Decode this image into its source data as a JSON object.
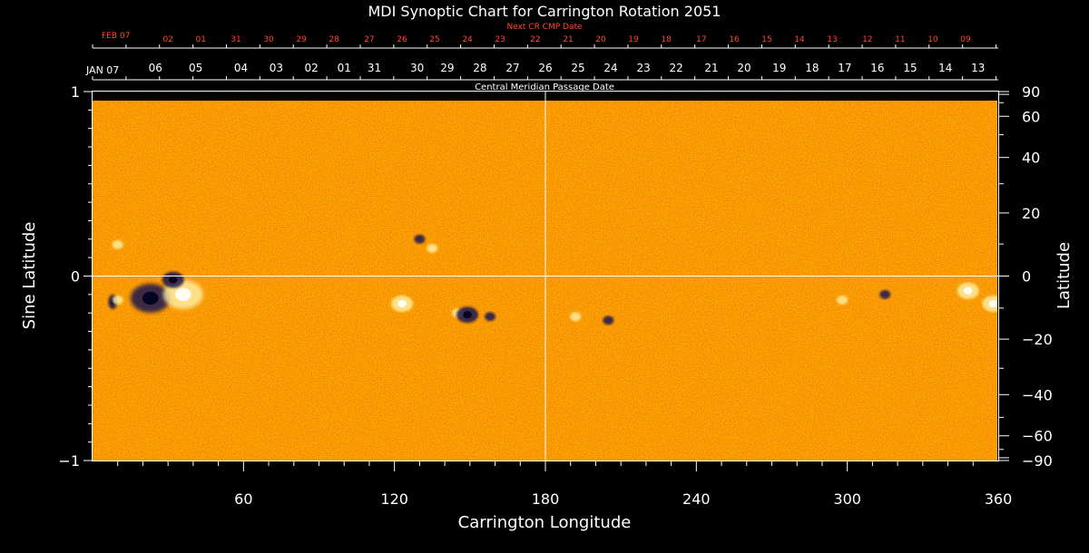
{
  "chart_data": {
    "type": "heatmap",
    "title": "MDI Synoptic Chart for Carrington Rotation 2051",
    "xlabel": "Carrington Longitude",
    "ylabel_left": "Sine Latitude",
    "ylabel_right": "Latitude",
    "xlim": [
      0,
      360
    ],
    "ylim": [
      -1,
      1
    ],
    "x_ticks": [
      60,
      120,
      180,
      240,
      300,
      360
    ],
    "y_ticks_left": [
      {
        "value": 1,
        "label": "1"
      },
      {
        "value": 0,
        "label": "0"
      },
      {
        "value": -1,
        "label": "−1"
      }
    ],
    "y_ticks_right": [
      {
        "deg": 90,
        "label": "90"
      },
      {
        "deg": 60,
        "label": "60"
      },
      {
        "deg": 40,
        "label": "40"
      },
      {
        "deg": 20,
        "label": "20"
      },
      {
        "deg": 0,
        "label": "0"
      },
      {
        "deg": -20,
        "label": "−20"
      },
      {
        "deg": -40,
        "label": "−40"
      },
      {
        "deg": -60,
        "label": "−60"
      },
      {
        "deg": -90,
        "label": "−90"
      }
    ],
    "cmp_axis_label": "Central Meridian Passage Date",
    "cmp_start_label": "JAN 07",
    "cmp_dates": [
      {
        "lon": 25,
        "label": "06"
      },
      {
        "lon": 41,
        "label": "05"
      },
      {
        "lon": 59,
        "label": "04"
      },
      {
        "lon": 73,
        "label": "03"
      },
      {
        "lon": 87,
        "label": "02"
      },
      {
        "lon": 100,
        "label": "01"
      },
      {
        "lon": 112,
        "label": "31"
      },
      {
        "lon": 129,
        "label": "30"
      },
      {
        "lon": 141,
        "label": "29"
      },
      {
        "lon": 154,
        "label": "28"
      },
      {
        "lon": 167,
        "label": "27"
      },
      {
        "lon": 180,
        "label": "26"
      },
      {
        "lon": 193,
        "label": "25"
      },
      {
        "lon": 206,
        "label": "24"
      },
      {
        "lon": 219,
        "label": "23"
      },
      {
        "lon": 232,
        "label": "22"
      },
      {
        "lon": 246,
        "label": "21"
      },
      {
        "lon": 259,
        "label": "20"
      },
      {
        "lon": 273,
        "label": "19"
      },
      {
        "lon": 286,
        "label": "18"
      },
      {
        "lon": 299,
        "label": "17"
      },
      {
        "lon": 312,
        "label": "16"
      },
      {
        "lon": 325,
        "label": "15"
      },
      {
        "lon": 339,
        "label": "14"
      },
      {
        "lon": 352,
        "label": "13"
      }
    ],
    "next_cr_label": "Next CR CMP Date",
    "next_cr_start_label": "FEB 07",
    "next_cr_dates": [
      {
        "lon": 30,
        "label": "02"
      },
      {
        "lon": 43,
        "label": "01"
      },
      {
        "lon": 57,
        "label": "31"
      },
      {
        "lon": 70,
        "label": "30"
      },
      {
        "lon": 83,
        "label": "29"
      },
      {
        "lon": 96,
        "label": "28"
      },
      {
        "lon": 110,
        "label": "27"
      },
      {
        "lon": 123,
        "label": "26"
      },
      {
        "lon": 136,
        "label": "25"
      },
      {
        "lon": 149,
        "label": "24"
      },
      {
        "lon": 162,
        "label": "23"
      },
      {
        "lon": 176,
        "label": "22"
      },
      {
        "lon": 189,
        "label": "21"
      },
      {
        "lon": 202,
        "label": "20"
      },
      {
        "lon": 215,
        "label": "19"
      },
      {
        "lon": 228,
        "label": "18"
      },
      {
        "lon": 242,
        "label": "17"
      },
      {
        "lon": 255,
        "label": "16"
      },
      {
        "lon": 268,
        "label": "15"
      },
      {
        "lon": 281,
        "label": "14"
      },
      {
        "lon": 294,
        "label": "13"
      },
      {
        "lon": 308,
        "label": "12"
      },
      {
        "lon": 321,
        "label": "11"
      },
      {
        "lon": 334,
        "label": "10"
      },
      {
        "lon": 347,
        "label": "09"
      }
    ],
    "reference_lines": {
      "longitude": 180,
      "sine_latitude": 0
    },
    "features": [
      {
        "lon": 8,
        "sinlat": -0.14,
        "polarity": "negative",
        "size": "small-strong"
      },
      {
        "lon": 10,
        "sinlat": -0.13,
        "polarity": "positive",
        "size": "small"
      },
      {
        "lon": 23,
        "sinlat": -0.12,
        "polarity": "negative",
        "size": "large"
      },
      {
        "lon": 36,
        "sinlat": -0.1,
        "polarity": "positive",
        "size": "large"
      },
      {
        "lon": 32,
        "sinlat": -0.02,
        "polarity": "negative",
        "size": "medium"
      },
      {
        "lon": 10,
        "sinlat": 0.17,
        "polarity": "positive",
        "size": "small"
      },
      {
        "lon": 130,
        "sinlat": 0.2,
        "polarity": "negative",
        "size": "small"
      },
      {
        "lon": 135,
        "sinlat": 0.15,
        "polarity": "positive",
        "size": "small"
      },
      {
        "lon": 123,
        "sinlat": -0.15,
        "polarity": "positive",
        "size": "medium"
      },
      {
        "lon": 145,
        "sinlat": -0.2,
        "polarity": "positive",
        "size": "small"
      },
      {
        "lon": 149,
        "sinlat": -0.21,
        "polarity": "negative",
        "size": "medium"
      },
      {
        "lon": 158,
        "sinlat": -0.22,
        "polarity": "negative",
        "size": "small"
      },
      {
        "lon": 192,
        "sinlat": -0.22,
        "polarity": "positive",
        "size": "small"
      },
      {
        "lon": 205,
        "sinlat": -0.24,
        "polarity": "negative",
        "size": "small"
      },
      {
        "lon": 298,
        "sinlat": -0.13,
        "polarity": "positive",
        "size": "small"
      },
      {
        "lon": 315,
        "sinlat": -0.1,
        "polarity": "negative",
        "size": "small"
      },
      {
        "lon": 348,
        "sinlat": -0.08,
        "polarity": "positive",
        "size": "medium"
      },
      {
        "lon": 358,
        "sinlat": -0.15,
        "polarity": "positive",
        "size": "medium"
      }
    ],
    "colors": {
      "background_field": "#ea4a12",
      "positive": "#fff2a8",
      "negative": "#1a1850",
      "next_cr_text": "#ff4a28",
      "axis": "#ffffff"
    },
    "grid": false
  }
}
